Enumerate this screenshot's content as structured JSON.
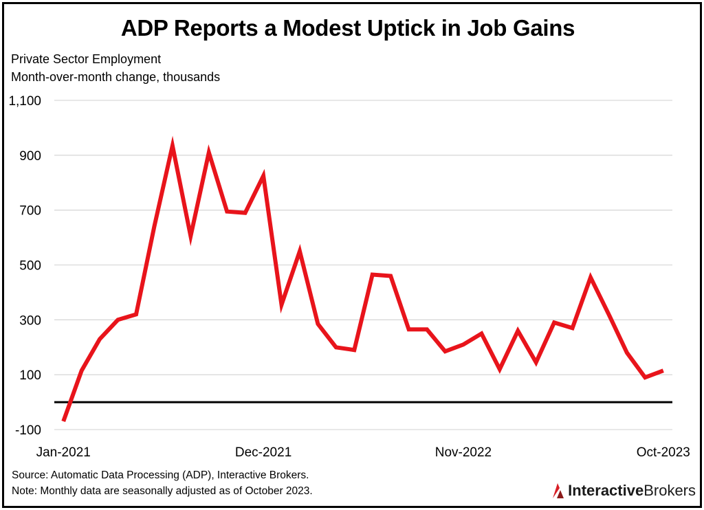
{
  "title": "ADP Reports a Modest Uptick in Job Gains",
  "subtitle_line1": "Private Sector Employment",
  "subtitle_line2": "Month-over-month change, thousands",
  "source_line1": "Source: Automatic Data Processing (ADP), Interactive Brokers.",
  "source_line2": "Note: Monthly data are seasonally adjusted as of October 2023.",
  "brand": {
    "part1": "Interactive",
    "part2": "Brokers",
    "accent": "#d81f26"
  },
  "chart_data": {
    "type": "line",
    "title": "ADP Reports a Modest Uptick in Job Gains",
    "ylabel": "Month-over-month change, thousands",
    "ylim": [
      -100,
      1100
    ],
    "yticks": [
      -100,
      100,
      300,
      500,
      700,
      900,
      1100
    ],
    "ytick_labels": [
      "-100",
      "100",
      "300",
      "500",
      "700",
      "900",
      "1,100"
    ],
    "xtick_labels": [
      "Jan-2021",
      "Dec-2021",
      "Nov-2022",
      "Oct-2023"
    ],
    "xtick_index": [
      0,
      11,
      22,
      33
    ],
    "grid": true,
    "zero_line": 0,
    "color": "#e8141b",
    "x": [
      "Jan-2021",
      "Feb-2021",
      "Mar-2021",
      "Apr-2021",
      "May-2021",
      "Jun-2021",
      "Jul-2021",
      "Aug-2021",
      "Sep-2021",
      "Oct-2021",
      "Nov-2021",
      "Dec-2021",
      "Jan-2022",
      "Feb-2022",
      "Mar-2022",
      "Apr-2022",
      "May-2022",
      "Jun-2022",
      "Jul-2022",
      "Aug-2022",
      "Sep-2022",
      "Oct-2022",
      "Nov-2022",
      "Dec-2022",
      "Jan-2023",
      "Feb-2023",
      "Mar-2023",
      "Apr-2023",
      "May-2023",
      "Jun-2023",
      "Jul-2023",
      "Aug-2023",
      "Sep-2023",
      "Oct-2023"
    ],
    "series": [
      {
        "values": [
          -70,
          115,
          230,
          300,
          320,
          640,
          935,
          605,
          910,
          695,
          690,
          825,
          355,
          550,
          285,
          200,
          190,
          465,
          460,
          265,
          265,
          185,
          210,
          250,
          120,
          260,
          145,
          290,
          270,
          455,
          320,
          180,
          90,
          115
        ]
      }
    ]
  }
}
